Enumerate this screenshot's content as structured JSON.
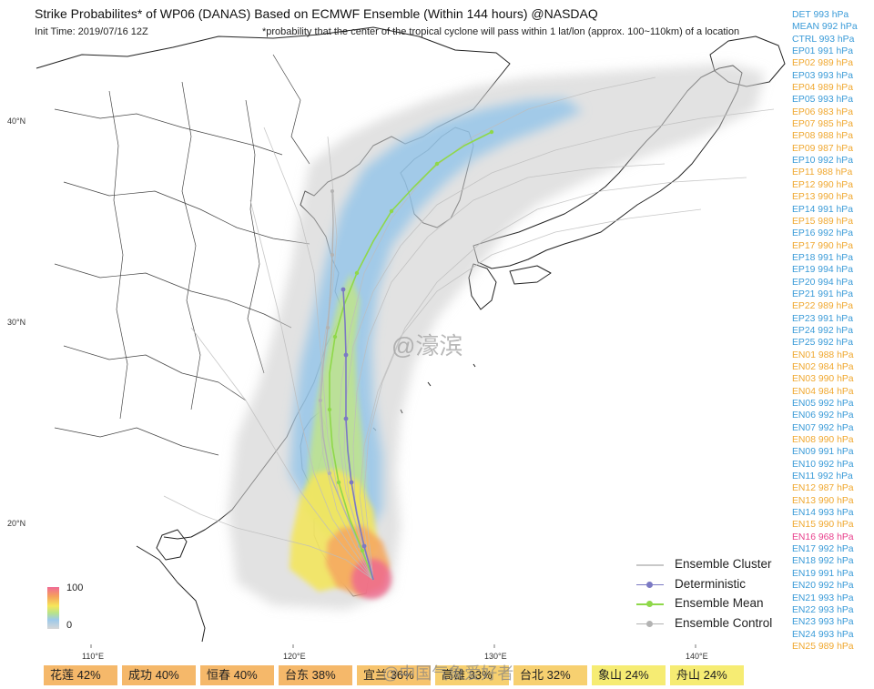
{
  "header": {
    "title": "Strike Probabilites* of WP06 (DANAS) Based on ECMWF Ensemble (Within 144 hours) @NASDAQ",
    "init_time": "Init Time: 2019/07/16 12Z",
    "note": "*probability that the center of the tropical cyclone will pass within 1 lat/lon (approx. 100~110km) of a location"
  },
  "axes": {
    "lat_labels": [
      "40°N",
      "30°N",
      "20°N"
    ],
    "lon_labels": [
      "110°E",
      "120°E",
      "130°E",
      "140°E"
    ]
  },
  "colorbar": {
    "max_label": "100",
    "min_label": "0"
  },
  "legend": {
    "items": [
      {
        "label": "Ensemble Cluster",
        "color": "#c8c8c8"
      },
      {
        "label": "Deterministic",
        "color": "#7b79c4"
      },
      {
        "label": "Ensemble Mean",
        "color": "#8fd84a"
      },
      {
        "label": "Ensemble Control",
        "color": "#b3b3b3"
      }
    ]
  },
  "members": [
    {
      "label": "DET 993 hPa",
      "color": "#3a9bd8"
    },
    {
      "label": "MEAN 992 hPa",
      "color": "#3a9bd8"
    },
    {
      "label": "CTRL 993 hPa",
      "color": "#3a9bd8"
    },
    {
      "label": "EP01 991 hPa",
      "color": "#3a9bd8"
    },
    {
      "label": "EP02 989 hPa",
      "color": "#f0a830"
    },
    {
      "label": "EP03 993 hPa",
      "color": "#3a9bd8"
    },
    {
      "label": "EP04 989 hPa",
      "color": "#f0a830"
    },
    {
      "label": "EP05 993 hPa",
      "color": "#3a9bd8"
    },
    {
      "label": "EP06 983 hPa",
      "color": "#f0a830"
    },
    {
      "label": "EP07 985 hPa",
      "color": "#f0a830"
    },
    {
      "label": "EP08 988 hPa",
      "color": "#f0a830"
    },
    {
      "label": "EP09 987 hPa",
      "color": "#f0a830"
    },
    {
      "label": "EP10 992 hPa",
      "color": "#3a9bd8"
    },
    {
      "label": "EP11 988 hPa",
      "color": "#f0a830"
    },
    {
      "label": "EP12 990 hPa",
      "color": "#f0a830"
    },
    {
      "label": "EP13 990 hPa",
      "color": "#f0a830"
    },
    {
      "label": "EP14 991 hPa",
      "color": "#3a9bd8"
    },
    {
      "label": "EP15 989 hPa",
      "color": "#f0a830"
    },
    {
      "label": "EP16 992 hPa",
      "color": "#3a9bd8"
    },
    {
      "label": "EP17 990 hPa",
      "color": "#f0a830"
    },
    {
      "label": "EP18 991 hPa",
      "color": "#3a9bd8"
    },
    {
      "label": "EP19 994 hPa",
      "color": "#3a9bd8"
    },
    {
      "label": "EP20 994 hPa",
      "color": "#3a9bd8"
    },
    {
      "label": "EP21 991 hPa",
      "color": "#3a9bd8"
    },
    {
      "label": "EP22 989 hPa",
      "color": "#f0a830"
    },
    {
      "label": "EP23 991 hPa",
      "color": "#3a9bd8"
    },
    {
      "label": "EP24 992 hPa",
      "color": "#3a9bd8"
    },
    {
      "label": "EP25 992 hPa",
      "color": "#3a9bd8"
    },
    {
      "label": "EN01 988 hPa",
      "color": "#f0a830"
    },
    {
      "label": "EN02 984 hPa",
      "color": "#f0a830"
    },
    {
      "label": "EN03 990 hPa",
      "color": "#f0a830"
    },
    {
      "label": "EN04 984 hPa",
      "color": "#f0a830"
    },
    {
      "label": "EN05 992 hPa",
      "color": "#3a9bd8"
    },
    {
      "label": "EN06 992 hPa",
      "color": "#3a9bd8"
    },
    {
      "label": "EN07 992 hPa",
      "color": "#3a9bd8"
    },
    {
      "label": "EN08 990 hPa",
      "color": "#f0a830"
    },
    {
      "label": "EN09 991 hPa",
      "color": "#3a9bd8"
    },
    {
      "label": "EN10 992 hPa",
      "color": "#3a9bd8"
    },
    {
      "label": "EN11 992 hPa",
      "color": "#3a9bd8"
    },
    {
      "label": "EN12 987 hPa",
      "color": "#f0a830"
    },
    {
      "label": "EN13 990 hPa",
      "color": "#f0a830"
    },
    {
      "label": "EN14 993 hPa",
      "color": "#3a9bd8"
    },
    {
      "label": "EN15 990 hPa",
      "color": "#f0a830"
    },
    {
      "label": "EN16 968 hPa",
      "color": "#e8408c"
    },
    {
      "label": "EN17 992 hPa",
      "color": "#3a9bd8"
    },
    {
      "label": "EN18 992 hPa",
      "color": "#3a9bd8"
    },
    {
      "label": "EN19 991 hPa",
      "color": "#3a9bd8"
    },
    {
      "label": "EN20 992 hPa",
      "color": "#3a9bd8"
    },
    {
      "label": "EN21 993 hPa",
      "color": "#3a9bd8"
    },
    {
      "label": "EN22 993 hPa",
      "color": "#3a9bd8"
    },
    {
      "label": "EN23 993 hPa",
      "color": "#3a9bd8"
    },
    {
      "label": "EN24 993 hPa",
      "color": "#3a9bd8"
    },
    {
      "label": "EN25 989 hPa",
      "color": "#f0a830"
    }
  ],
  "cities": [
    {
      "label": "花莲 42%",
      "color": "#f5b86a"
    },
    {
      "label": "成功 40%",
      "color": "#f5b86a"
    },
    {
      "label": "恒春 40%",
      "color": "#f5b86a"
    },
    {
      "label": "台东 38%",
      "color": "#f5b86a"
    },
    {
      "label": "宜兰 36%",
      "color": "#f7c46e"
    },
    {
      "label": "高雄 33%",
      "color": "#f7d070"
    },
    {
      "label": "台北 32%",
      "color": "#f7d070"
    },
    {
      "label": "象山 24%",
      "color": "#f6ec73"
    },
    {
      "label": "舟山 24%",
      "color": "#f6ec73"
    }
  ],
  "watermarks": {
    "center": "@濠滨",
    "bottom": "@中国气象爱好者"
  }
}
